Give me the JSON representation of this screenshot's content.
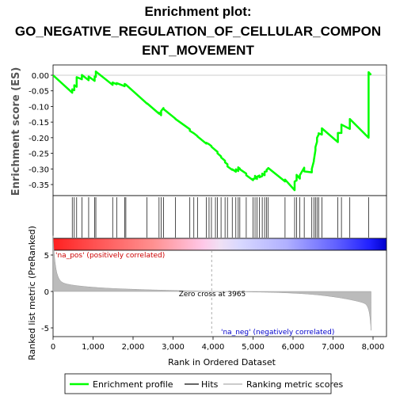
{
  "chart_data": {
    "type": "line",
    "title_lines": [
      "Enrichment plot:",
      "GO_NEGATIVE_REGULATION_OF_CELLULAR_COMPON",
      "ENT_MOVEMENT"
    ],
    "xlabel": "Rank in Ordered Dataset",
    "ylabel_top": "Enrichment score (ES)",
    "ylabel_bottom": "Ranked list metric (PreRanked)",
    "xlim": [
      0,
      8000
    ],
    "es_ylim": [
      -0.375,
      0.03
    ],
    "metric_ylim": [
      -6.5,
      8.5
    ],
    "x_ticks": [
      0,
      1000,
      2000,
      3000,
      4000,
      5000,
      6000,
      7000,
      8000
    ],
    "x_tick_labels": [
      "0",
      "1,000",
      "2,000",
      "3,000",
      "4,000",
      "5,000",
      "6,000",
      "7,000",
      "8,000"
    ],
    "es_ticks": [
      0.0,
      -0.05,
      -0.1,
      -0.15,
      -0.2,
      -0.25,
      -0.3,
      -0.35
    ],
    "es_tick_labels": [
      "0.00",
      "-0.05",
      "-0.10",
      "-0.15",
      "-0.20",
      "-0.25",
      "-0.30",
      "-0.35"
    ],
    "metric_ticks": [
      5,
      0,
      -5
    ],
    "metric_tick_labels": [
      "5",
      "0",
      "-5"
    ],
    "zero_cross": 3965,
    "zero_cross_label": "Zero cross at 3965",
    "pos_label": "'na_pos' (positively correlated)",
    "neg_label": "'na_neg' (negatively correlated)",
    "n_genes": 7950,
    "hits": [
      480,
      530,
      590,
      720,
      890,
      1040,
      1070,
      1490,
      1590,
      1790,
      1820,
      2350,
      2650,
      2700,
      2760,
      3060,
      3420,
      3520,
      3610,
      3830,
      3900,
      3960,
      4060,
      4110,
      4200,
      4300,
      4360,
      4480,
      4570,
      4630,
      4670,
      4830,
      5000,
      5050,
      5100,
      5160,
      5230,
      5290,
      5340,
      5380,
      5800,
      6040,
      6090,
      6170,
      6280,
      6470,
      6520,
      6560,
      6600,
      6640,
      6720,
      7120,
      7210,
      7420,
      7890
    ],
    "series": [
      {
        "name": "Enrichment profile",
        "color": "#00ff00",
        "x": [
          0,
          480,
          480,
          530,
          530,
          590,
          590,
          720,
          720,
          890,
          890,
          1040,
          1040,
          1070,
          1070,
          1490,
          1490,
          1590,
          1590,
          1790,
          1790,
          1820,
          1820,
          2350,
          2350,
          2650,
          2650,
          2700,
          2700,
          2760,
          2760,
          3060,
          3060,
          3420,
          3420,
          3520,
          3520,
          3610,
          3610,
          3830,
          3830,
          3900,
          3900,
          3960,
          3960,
          4060,
          4060,
          4110,
          4110,
          4200,
          4200,
          4300,
          4300,
          4360,
          4360,
          4480,
          4480,
          4570,
          4570,
          4630,
          4630,
          4670,
          4670,
          4830,
          4830,
          5000,
          5000,
          5050,
          5050,
          5100,
          5100,
          5160,
          5160,
          5230,
          5230,
          5290,
          5290,
          5340,
          5340,
          5380,
          5380,
          5800,
          5800,
          6040,
          6040,
          6090,
          6090,
          6170,
          6170,
          6280,
          6280,
          6470,
          6470,
          6520,
          6520,
          6560,
          6560,
          6600,
          6600,
          6640,
          6640,
          6720,
          6720,
          7120,
          7120,
          7210,
          7210,
          7420,
          7420,
          7890,
          7890,
          7950
        ],
        "y": [
          0.0,
          -0.056,
          -0.045,
          -0.048,
          -0.032,
          -0.037,
          -0.006,
          -0.013,
          0.001,
          -0.016,
          -0.004,
          -0.018,
          -0.004,
          -0.005,
          0.012,
          -0.031,
          -0.023,
          -0.029,
          -0.025,
          -0.035,
          -0.028,
          -0.03,
          -0.03,
          -0.091,
          -0.09,
          -0.123,
          -0.12,
          -0.128,
          -0.115,
          -0.105,
          -0.108,
          -0.139,
          -0.14,
          -0.173,
          -0.178,
          -0.186,
          -0.186,
          -0.195,
          -0.196,
          -0.219,
          -0.216,
          -0.221,
          -0.221,
          -0.227,
          -0.229,
          -0.24,
          -0.24,
          -0.245,
          -0.25,
          -0.26,
          -0.263,
          -0.274,
          -0.279,
          -0.285,
          -0.292,
          -0.303,
          -0.301,
          -0.309,
          -0.301,
          -0.307,
          -0.295,
          -0.299,
          -0.301,
          -0.315,
          -0.32,
          -0.336,
          -0.332,
          -0.331,
          -0.322,
          -0.332,
          -0.325,
          -0.321,
          -0.327,
          -0.323,
          -0.315,
          -0.32,
          -0.309,
          -0.308,
          -0.302,
          -0.299,
          -0.297,
          -0.34,
          -0.334,
          -0.368,
          -0.34,
          -0.337,
          -0.319,
          -0.331,
          -0.32,
          -0.296,
          -0.308,
          -0.311,
          -0.3,
          -0.275,
          -0.272,
          -0.24,
          -0.23,
          -0.213,
          -0.2,
          -0.19,
          -0.186,
          -0.19,
          -0.17,
          -0.214,
          -0.185,
          -0.185,
          -0.158,
          -0.172,
          -0.14,
          -0.2,
          0.01,
          0.001
        ]
      }
    ],
    "legend": [
      "Enrichment profile",
      "Hits",
      "Ranking metric scores"
    ],
    "legend_position": "bottom",
    "grid": false
  }
}
